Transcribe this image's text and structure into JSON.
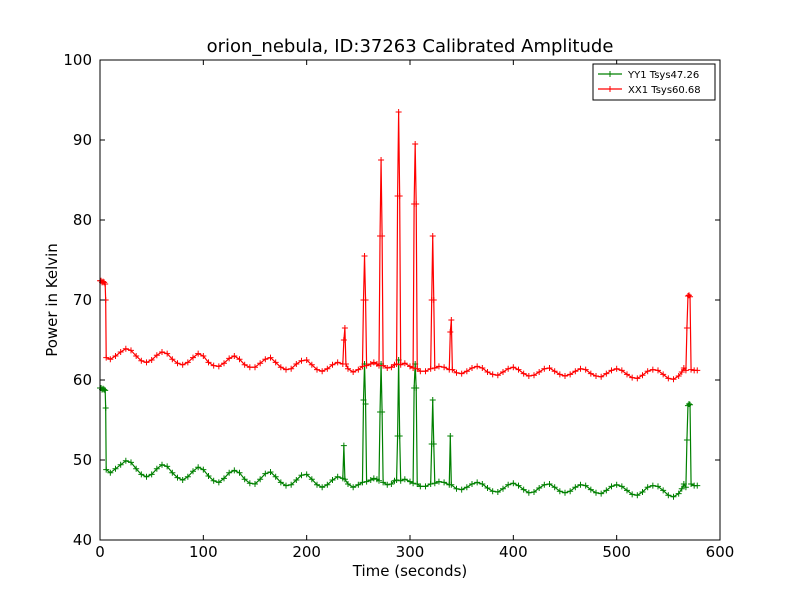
{
  "chart_data": {
    "type": "line",
    "title": "orion_nebula, ID:37263 Calibrated Amplitude",
    "xlabel": "Time (seconds)",
    "ylabel": "Power in Kelvin",
    "xlim": [
      0,
      600
    ],
    "ylim": [
      40,
      100
    ],
    "xticks": [
      0,
      100,
      200,
      300,
      400,
      500,
      600
    ],
    "yticks": [
      40,
      50,
      60,
      70,
      80,
      90,
      100
    ],
    "legend_position": "top-right",
    "marker": "+",
    "series": [
      {
        "name": "YY1 Tsys47.26",
        "color": "#008000",
        "points": [
          [
            0,
            59.0
          ],
          [
            1,
            59.0
          ],
          [
            2,
            58.8
          ],
          [
            3,
            58.9
          ],
          [
            4,
            58.8
          ],
          [
            5,
            58.7
          ],
          [
            5.5,
            56.5
          ],
          [
            6,
            48.8
          ],
          [
            10,
            48.4
          ],
          [
            15,
            48.9
          ],
          [
            20,
            49.4
          ],
          [
            25,
            49.9
          ],
          [
            30,
            49.7
          ],
          [
            35,
            48.9
          ],
          [
            40,
            48.2
          ],
          [
            45,
            47.9
          ],
          [
            50,
            48.2
          ],
          [
            55,
            48.9
          ],
          [
            60,
            49.4
          ],
          [
            65,
            49.2
          ],
          [
            70,
            48.4
          ],
          [
            75,
            47.8
          ],
          [
            80,
            47.5
          ],
          [
            85,
            47.9
          ],
          [
            90,
            48.6
          ],
          [
            95,
            49.1
          ],
          [
            100,
            48.8
          ],
          [
            105,
            48.0
          ],
          [
            110,
            47.4
          ],
          [
            115,
            47.2
          ],
          [
            120,
            47.7
          ],
          [
            125,
            48.4
          ],
          [
            130,
            48.7
          ],
          [
            135,
            48.4
          ],
          [
            140,
            47.6
          ],
          [
            145,
            47.1
          ],
          [
            150,
            47.0
          ],
          [
            155,
            47.6
          ],
          [
            160,
            48.3
          ],
          [
            165,
            48.5
          ],
          [
            170,
            47.9
          ],
          [
            175,
            47.2
          ],
          [
            180,
            46.8
          ],
          [
            185,
            46.9
          ],
          [
            190,
            47.5
          ],
          [
            195,
            48.1
          ],
          [
            200,
            48.2
          ],
          [
            205,
            47.6
          ],
          [
            210,
            46.9
          ],
          [
            215,
            46.6
          ],
          [
            220,
            46.9
          ],
          [
            225,
            47.5
          ],
          [
            230,
            47.9
          ],
          [
            235,
            47.7
          ],
          [
            236,
            51.8
          ],
          [
            237,
            47.6
          ],
          [
            240,
            47.0
          ],
          [
            245,
            46.6
          ],
          [
            250,
            46.9
          ],
          [
            254,
            47.2
          ],
          [
            255,
            57.5
          ],
          [
            256,
            62.0
          ],
          [
            257,
            57.0
          ],
          [
            258,
            47.3
          ],
          [
            262,
            47.5
          ],
          [
            265,
            47.7
          ],
          [
            268,
            47.6
          ],
          [
            270,
            47.4
          ],
          [
            271,
            56.0
          ],
          [
            272,
            62.0
          ],
          [
            273,
            56.0
          ],
          [
            274,
            47.2
          ],
          [
            278,
            46.9
          ],
          [
            282,
            47.0
          ],
          [
            285,
            47.4
          ],
          [
            287,
            47.5
          ],
          [
            288,
            53.0
          ],
          [
            289,
            62.5
          ],
          [
            290,
            53.0
          ],
          [
            291,
            47.4
          ],
          [
            295,
            47.6
          ],
          [
            300,
            47.3
          ],
          [
            303,
            47.1
          ],
          [
            304,
            59.0
          ],
          [
            305,
            62.0
          ],
          [
            306,
            59.0
          ],
          [
            307,
            47.0
          ],
          [
            310,
            46.7
          ],
          [
            315,
            46.7
          ],
          [
            320,
            47.0
          ],
          [
            321,
            52.0
          ],
          [
            322,
            57.5
          ],
          [
            323,
            52.0
          ],
          [
            324,
            47.1
          ],
          [
            328,
            47.3
          ],
          [
            333,
            47.2
          ],
          [
            338,
            46.9
          ],
          [
            339,
            53.0
          ],
          [
            340,
            46.9
          ],
          [
            345,
            46.4
          ],
          [
            350,
            46.3
          ],
          [
            355,
            46.6
          ],
          [
            360,
            47.0
          ],
          [
            365,
            47.2
          ],
          [
            370,
            47.0
          ],
          [
            375,
            46.5
          ],
          [
            380,
            46.1
          ],
          [
            385,
            46.0
          ],
          [
            390,
            46.4
          ],
          [
            395,
            46.9
          ],
          [
            400,
            47.1
          ],
          [
            405,
            46.8
          ],
          [
            410,
            46.3
          ],
          [
            415,
            45.9
          ],
          [
            420,
            46.0
          ],
          [
            425,
            46.5
          ],
          [
            430,
            46.9
          ],
          [
            435,
            47.0
          ],
          [
            440,
            46.6
          ],
          [
            445,
            46.1
          ],
          [
            450,
            45.9
          ],
          [
            455,
            46.1
          ],
          [
            460,
            46.6
          ],
          [
            465,
            46.9
          ],
          [
            470,
            46.8
          ],
          [
            475,
            46.3
          ],
          [
            480,
            45.9
          ],
          [
            485,
            45.8
          ],
          [
            490,
            46.2
          ],
          [
            495,
            46.7
          ],
          [
            500,
            46.9
          ],
          [
            505,
            46.7
          ],
          [
            510,
            46.2
          ],
          [
            515,
            45.7
          ],
          [
            520,
            45.6
          ],
          [
            525,
            46.0
          ],
          [
            530,
            46.6
          ],
          [
            535,
            46.8
          ],
          [
            540,
            46.7
          ],
          [
            545,
            46.2
          ],
          [
            550,
            45.6
          ],
          [
            555,
            45.4
          ],
          [
            560,
            45.8
          ],
          [
            563,
            46.4
          ],
          [
            565,
            47.0
          ],
          [
            567,
            46.6
          ],
          [
            568,
            52.5
          ],
          [
            569,
            56.8
          ],
          [
            570,
            57.0
          ],
          [
            571,
            56.9
          ],
          [
            572,
            47.0
          ],
          [
            575,
            46.8
          ],
          [
            578,
            46.8
          ]
        ]
      },
      {
        "name": "XX1 Tsys60.68",
        "color": "#ff0000",
        "points": [
          [
            0,
            72.4
          ],
          [
            1,
            72.4
          ],
          [
            2,
            72.2
          ],
          [
            3,
            72.3
          ],
          [
            4,
            72.2
          ],
          [
            5,
            72.0
          ],
          [
            5.5,
            70.0
          ],
          [
            6,
            62.8
          ],
          [
            10,
            62.6
          ],
          [
            15,
            63.0
          ],
          [
            20,
            63.5
          ],
          [
            25,
            63.9
          ],
          [
            30,
            63.7
          ],
          [
            35,
            63.0
          ],
          [
            40,
            62.4
          ],
          [
            45,
            62.2
          ],
          [
            50,
            62.5
          ],
          [
            55,
            63.1
          ],
          [
            60,
            63.5
          ],
          [
            65,
            63.3
          ],
          [
            70,
            62.6
          ],
          [
            75,
            62.1
          ],
          [
            80,
            61.9
          ],
          [
            85,
            62.2
          ],
          [
            90,
            62.8
          ],
          [
            95,
            63.3
          ],
          [
            100,
            63.0
          ],
          [
            105,
            62.2
          ],
          [
            110,
            61.8
          ],
          [
            115,
            61.7
          ],
          [
            120,
            62.1
          ],
          [
            125,
            62.7
          ],
          [
            130,
            63.0
          ],
          [
            135,
            62.6
          ],
          [
            140,
            61.9
          ],
          [
            145,
            61.6
          ],
          [
            150,
            61.6
          ],
          [
            155,
            62.1
          ],
          [
            160,
            62.6
          ],
          [
            165,
            62.8
          ],
          [
            170,
            62.2
          ],
          [
            175,
            61.6
          ],
          [
            180,
            61.3
          ],
          [
            185,
            61.4
          ],
          [
            190,
            62.0
          ],
          [
            195,
            62.4
          ],
          [
            200,
            62.5
          ],
          [
            205,
            61.9
          ],
          [
            210,
            61.3
          ],
          [
            215,
            61.1
          ],
          [
            220,
            61.4
          ],
          [
            225,
            61.9
          ],
          [
            230,
            62.2
          ],
          [
            235,
            62.0
          ],
          [
            236,
            65.0
          ],
          [
            237,
            66.5
          ],
          [
            238,
            62.0
          ],
          [
            240,
            61.4
          ],
          [
            245,
            61.0
          ],
          [
            250,
            61.3
          ],
          [
            254,
            61.7
          ],
          [
            255,
            70.0
          ],
          [
            256,
            75.5
          ],
          [
            257,
            70.0
          ],
          [
            258,
            61.8
          ],
          [
            262,
            62.0
          ],
          [
            265,
            62.2
          ],
          [
            268,
            62.0
          ],
          [
            270,
            61.8
          ],
          [
            271,
            78.0
          ],
          [
            272,
            87.5
          ],
          [
            273,
            78.0
          ],
          [
            274,
            61.8
          ],
          [
            278,
            61.5
          ],
          [
            282,
            61.6
          ],
          [
            285,
            61.9
          ],
          [
            287,
            62.0
          ],
          [
            288,
            83.0
          ],
          [
            289,
            93.5
          ],
          [
            290,
            83.0
          ],
          [
            291,
            61.9
          ],
          [
            295,
            62.1
          ],
          [
            300,
            61.7
          ],
          [
            303,
            61.5
          ],
          [
            304,
            82.0
          ],
          [
            305,
            89.5
          ],
          [
            306,
            82.0
          ],
          [
            307,
            61.4
          ],
          [
            310,
            61.1
          ],
          [
            315,
            61.1
          ],
          [
            320,
            61.4
          ],
          [
            321,
            70.0
          ],
          [
            322,
            78.0
          ],
          [
            323,
            70.0
          ],
          [
            324,
            61.5
          ],
          [
            328,
            61.7
          ],
          [
            333,
            61.6
          ],
          [
            338,
            61.3
          ],
          [
            339,
            66.0
          ],
          [
            340,
            67.5
          ],
          [
            341,
            61.3
          ],
          [
            345,
            60.9
          ],
          [
            350,
            60.8
          ],
          [
            355,
            61.1
          ],
          [
            360,
            61.5
          ],
          [
            365,
            61.7
          ],
          [
            370,
            61.5
          ],
          [
            375,
            61.0
          ],
          [
            380,
            60.7
          ],
          [
            385,
            60.6
          ],
          [
            390,
            61.0
          ],
          [
            395,
            61.4
          ],
          [
            400,
            61.6
          ],
          [
            405,
            61.3
          ],
          [
            410,
            60.8
          ],
          [
            415,
            60.5
          ],
          [
            420,
            60.6
          ],
          [
            425,
            61.0
          ],
          [
            430,
            61.4
          ],
          [
            435,
            61.5
          ],
          [
            440,
            61.1
          ],
          [
            445,
            60.7
          ],
          [
            450,
            60.5
          ],
          [
            455,
            60.7
          ],
          [
            460,
            61.1
          ],
          [
            465,
            61.4
          ],
          [
            470,
            61.3
          ],
          [
            475,
            60.8
          ],
          [
            480,
            60.5
          ],
          [
            485,
            60.4
          ],
          [
            490,
            60.8
          ],
          [
            495,
            61.2
          ],
          [
            500,
            61.4
          ],
          [
            505,
            61.2
          ],
          [
            510,
            60.7
          ],
          [
            515,
            60.3
          ],
          [
            520,
            60.2
          ],
          [
            525,
            60.6
          ],
          [
            530,
            61.1
          ],
          [
            535,
            61.3
          ],
          [
            540,
            61.2
          ],
          [
            545,
            60.7
          ],
          [
            550,
            60.2
          ],
          [
            555,
            60.1
          ],
          [
            560,
            60.5
          ],
          [
            563,
            61.0
          ],
          [
            565,
            61.5
          ],
          [
            567,
            61.2
          ],
          [
            568,
            66.5
          ],
          [
            569,
            70.5
          ],
          [
            570,
            70.6
          ],
          [
            571,
            70.4
          ],
          [
            572,
            61.3
          ],
          [
            575,
            61.2
          ],
          [
            578,
            61.2
          ]
        ]
      }
    ]
  }
}
